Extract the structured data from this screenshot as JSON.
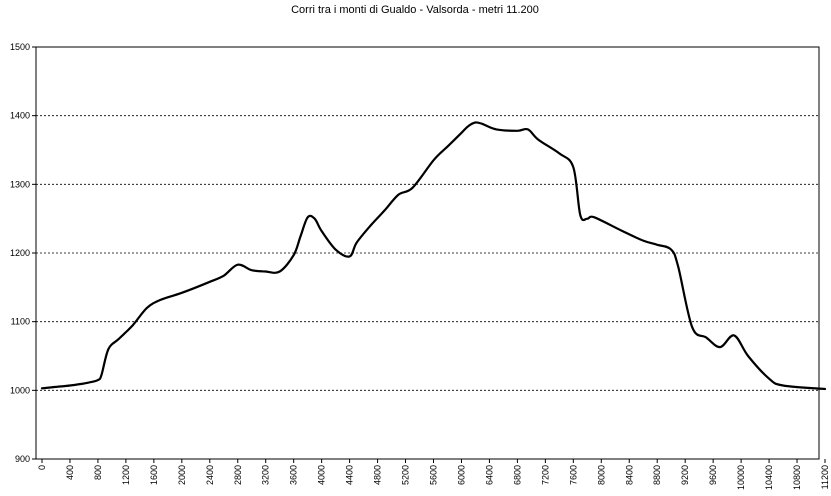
{
  "chart_data": {
    "type": "line",
    "title": "Corri tra i monti di Gualdo - Valsorda - metri 11.200",
    "xlabel": "",
    "ylabel": "",
    "xlim": [
      0,
      11200
    ],
    "ylim": [
      900,
      1500
    ],
    "y_ticks": [
      900,
      1000,
      1100,
      1200,
      1300,
      1400,
      1500
    ],
    "x_ticks": [
      0,
      400,
      800,
      1200,
      1600,
      2000,
      2400,
      2800,
      3200,
      3600,
      4000,
      4400,
      4800,
      5200,
      5600,
      6000,
      6400,
      6800,
      7200,
      7600,
      8000,
      8400,
      8800,
      9200,
      9600,
      10000,
      10400,
      10800,
      11200
    ],
    "x_tick_labels": [
      "0",
      "400",
      "800",
      "1200",
      "1600",
      "2000",
      "2400",
      "2800",
      "3200",
      "3600",
      "4000",
      "4400",
      "4800",
      "5200",
      "5600",
      "6000",
      "6400",
      "6800",
      "7200",
      "7600",
      "8000",
      "8400",
      "8800",
      "9200",
      "9600",
      "10000",
      "10400",
      "10800",
      "11200"
    ],
    "grid": "horizontal-dotted",
    "legend": "none",
    "series": [
      {
        "color": "#000000",
        "x": [
          0,
          200,
          400,
          600,
          700,
          800,
          850,
          950,
          1100,
          1300,
          1500,
          1700,
          2000,
          2400,
          2600,
          2800,
          3000,
          3200,
          3400,
          3600,
          3700,
          3800,
          3900,
          4000,
          4200,
          4400,
          4500,
          4700,
          4900,
          5100,
          5300,
          5600,
          5800,
          6000,
          6100,
          6200,
          6300,
          6500,
          6800,
          6950,
          7100,
          7400,
          7600,
          7700,
          7800,
          7900,
          8300,
          8600,
          8800,
          9000,
          9100,
          9300,
          9500,
          9700,
          9900,
          10100,
          10400,
          10600,
          11200
        ],
        "y": [
          1003,
          1005,
          1007,
          1010,
          1012,
          1015,
          1022,
          1060,
          1075,
          1095,
          1120,
          1132,
          1142,
          1158,
          1167,
          1183,
          1175,
          1173,
          1173,
          1197,
          1225,
          1252,
          1250,
          1232,
          1205,
          1195,
          1215,
          1240,
          1262,
          1285,
          1295,
          1335,
          1355,
          1375,
          1385,
          1390,
          1388,
          1380,
          1378,
          1380,
          1365,
          1345,
          1325,
          1255,
          1250,
          1252,
          1232,
          1218,
          1212,
          1205,
          1180,
          1092,
          1077,
          1063,
          1080,
          1050,
          1017,
          1007,
          1002
        ]
      }
    ]
  }
}
